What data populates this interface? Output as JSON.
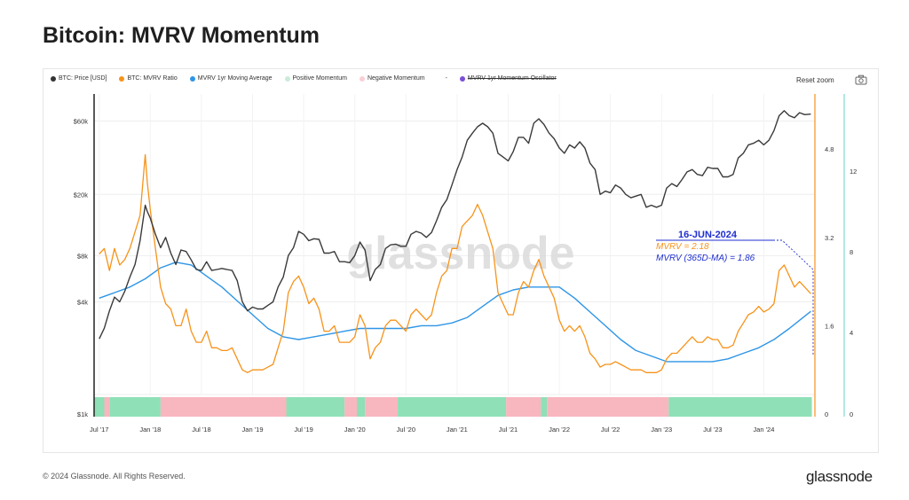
{
  "title": "Bitcoin: MVRV Momentum",
  "reset_zoom": "Reset zoom",
  "watermark": "glassnode",
  "footer": {
    "copyright": "© 2024 Glassnode. All Rights Reserved.",
    "logo": "glassnode"
  },
  "legend": [
    {
      "label": "BTC: Price [USD]",
      "color": "#333333"
    },
    {
      "label": "BTC: MVRV Ratio",
      "color": "#f7931a"
    },
    {
      "label": "MVRV 1yr Moving Average",
      "color": "#2e95e6"
    },
    {
      "label": "Positive Momentum",
      "color": "#c8ecd9"
    },
    {
      "label": "Negative Momentum",
      "color": "#f9cfd5"
    },
    {
      "label": "-",
      "color": "#ffffff"
    },
    {
      "label": "MVRV 1yr Momentum Oscillator",
      "color": "#7b4fd6",
      "struck": true
    }
  ],
  "annotation": {
    "date": "16-JUN-2024",
    "mvrv": "MVRV = 2.18",
    "ma": "MVRV (365D-MA) = 1.86"
  },
  "colors": {
    "price": "#3a3a3a",
    "mvrv": "#f7931a",
    "ma": "#2e95e6",
    "positive": "#8fe0b6",
    "negative": "#f8b6bf",
    "annotation": "#1f2fd0"
  },
  "chart_data": {
    "type": "line",
    "x_ticks": [
      "Jul '17",
      "Jan '18",
      "Jul '18",
      "Jan '19",
      "Jul '19",
      "Jan '20",
      "Jul '20",
      "Jan '21",
      "Jul '21",
      "Jan '22",
      "Jul '22",
      "Jan '23",
      "Jul '23",
      "Jan '24"
    ],
    "x_range": [
      2017.45,
      2024.5
    ],
    "price_axis": {
      "scale": "log",
      "ticks": [
        "$1k",
        "$4k",
        "$8k",
        "$20k",
        "$60k"
      ],
      "tick_values": [
        1000,
        4000,
        8000,
        20000,
        60000
      ]
    },
    "mvrv_axis": {
      "ticks": [
        "0",
        "1.6",
        "3.2",
        "4.8"
      ],
      "tick_values": [
        0,
        1.6,
        3.2,
        4.8
      ],
      "range": [
        0,
        5.8
      ]
    },
    "oscillator_axis": {
      "ticks": [
        "0",
        "4",
        "8",
        "12"
      ],
      "tick_values": [
        0,
        4,
        8,
        12
      ]
    },
    "series": [
      {
        "name": "BTC: Price [USD]",
        "x": [
          2017.5,
          2017.55,
          2017.6,
          2017.65,
          2017.7,
          2017.75,
          2017.8,
          2017.85,
          2017.9,
          2017.95,
          2017.97,
          2018.0,
          2018.05,
          2018.1,
          2018.15,
          2018.2,
          2018.25,
          2018.3,
          2018.35,
          2018.4,
          2018.45,
          2018.5,
          2018.55,
          2018.6,
          2018.65,
          2018.7,
          2018.75,
          2018.8,
          2018.85,
          2018.9,
          2018.95,
          2019.0,
          2019.05,
          2019.1,
          2019.15,
          2019.2,
          2019.25,
          2019.3,
          2019.35,
          2019.4,
          2019.45,
          2019.5,
          2019.55,
          2019.6,
          2019.65,
          2019.7,
          2019.75,
          2019.8,
          2019.85,
          2019.9,
          2019.95,
          2020.0,
          2020.05,
          2020.1,
          2020.15,
          2020.2,
          2020.25,
          2020.3,
          2020.35,
          2020.4,
          2020.45,
          2020.5,
          2020.55,
          2020.6,
          2020.65,
          2020.7,
          2020.75,
          2020.8,
          2020.85,
          2020.9,
          2020.95,
          2021.0,
          2021.05,
          2021.1,
          2021.15,
          2021.2,
          2021.25,
          2021.3,
          2021.35,
          2021.4,
          2021.45,
          2021.5,
          2021.55,
          2021.6,
          2021.65,
          2021.7,
          2021.75,
          2021.8,
          2021.85,
          2021.9,
          2021.95,
          2022.0,
          2022.05,
          2022.1,
          2022.15,
          2022.2,
          2022.25,
          2022.3,
          2022.35,
          2022.4,
          2022.45,
          2022.5,
          2022.55,
          2022.6,
          2022.65,
          2022.7,
          2022.75,
          2022.8,
          2022.85,
          2022.9,
          2022.95,
          2023.0,
          2023.05,
          2023.1,
          2023.15,
          2023.2,
          2023.25,
          2023.3,
          2023.35,
          2023.4,
          2023.45,
          2023.5,
          2023.55,
          2023.6,
          2023.65,
          2023.7,
          2023.75,
          2023.8,
          2023.85,
          2023.9,
          2023.95,
          2024.0,
          2024.05,
          2024.1,
          2024.15,
          2024.2,
          2024.25,
          2024.3,
          2024.35,
          2024.4,
          2024.46
        ],
        "values": [
          2300,
          2700,
          3500,
          4300,
          4000,
          4700,
          5800,
          7000,
          10000,
          17000,
          15500,
          14000,
          11000,
          9000,
          10500,
          8300,
          7000,
          8700,
          8500,
          7500,
          6500,
          6400,
          7300,
          6400,
          6500,
          6600,
          6500,
          6400,
          5500,
          4000,
          3500,
          3700,
          3600,
          3600,
          3800,
          4000,
          5000,
          5800,
          8000,
          9000,
          11500,
          11000,
          10000,
          10300,
          10200,
          8300,
          8300,
          8500,
          7300,
          7300,
          7200,
          8000,
          9800,
          8700,
          5500,
          6500,
          7000,
          8900,
          9400,
          9500,
          9200,
          9200,
          11000,
          11500,
          11200,
          10500,
          11300,
          13500,
          16500,
          18500,
          23000,
          29000,
          35000,
          45000,
          50000,
          55000,
          58000,
          55000,
          50000,
          37000,
          35000,
          33000,
          38000,
          47000,
          47000,
          43000,
          58000,
          62000,
          57000,
          50000,
          46000,
          40000,
          37000,
          42000,
          40000,
          44000,
          40000,
          32000,
          29000,
          20000,
          21000,
          20500,
          23000,
          22000,
          20000,
          19000,
          19500,
          20000,
          16500,
          17000,
          16500,
          17000,
          22000,
          23500,
          22500,
          25000,
          28000,
          29000,
          27000,
          26500,
          30000,
          29500,
          29500,
          26000,
          26000,
          27000,
          34500,
          37000,
          42000,
          43000,
          45000,
          42000,
          45000,
          52000,
          65000,
          70000,
          65000,
          63000,
          68000,
          66000,
          66500
        ]
      },
      {
        "name": "BTC: MVRV Ratio",
        "x": [
          2017.5,
          2017.55,
          2017.6,
          2017.65,
          2017.7,
          2017.75,
          2017.8,
          2017.85,
          2017.9,
          2017.95,
          2017.97,
          2018.0,
          2018.05,
          2018.1,
          2018.15,
          2018.2,
          2018.25,
          2018.3,
          2018.35,
          2018.4,
          2018.45,
          2018.5,
          2018.55,
          2018.6,
          2018.65,
          2018.7,
          2018.75,
          2018.8,
          2018.85,
          2018.9,
          2018.95,
          2019.0,
          2019.05,
          2019.1,
          2019.15,
          2019.2,
          2019.25,
          2019.3,
          2019.35,
          2019.4,
          2019.45,
          2019.5,
          2019.55,
          2019.6,
          2019.65,
          2019.7,
          2019.75,
          2019.8,
          2019.85,
          2019.9,
          2019.95,
          2020.0,
          2020.05,
          2020.1,
          2020.15,
          2020.2,
          2020.25,
          2020.3,
          2020.35,
          2020.4,
          2020.45,
          2020.5,
          2020.55,
          2020.6,
          2020.65,
          2020.7,
          2020.75,
          2020.8,
          2020.85,
          2020.9,
          2020.95,
          2021.0,
          2021.05,
          2021.1,
          2021.15,
          2021.2,
          2021.25,
          2021.3,
          2021.35,
          2021.4,
          2021.45,
          2021.5,
          2021.55,
          2021.6,
          2021.65,
          2021.7,
          2021.75,
          2021.8,
          2021.85,
          2021.9,
          2021.95,
          2022.0,
          2022.05,
          2022.1,
          2022.15,
          2022.2,
          2022.25,
          2022.3,
          2022.35,
          2022.4,
          2022.45,
          2022.5,
          2022.55,
          2022.6,
          2022.65,
          2022.7,
          2022.75,
          2022.8,
          2022.85,
          2022.9,
          2022.95,
          2023.0,
          2023.05,
          2023.1,
          2023.15,
          2023.2,
          2023.25,
          2023.3,
          2023.35,
          2023.4,
          2023.45,
          2023.5,
          2023.55,
          2023.6,
          2023.65,
          2023.7,
          2023.75,
          2023.8,
          2023.85,
          2023.9,
          2023.95,
          2024.0,
          2024.05,
          2024.1,
          2024.15,
          2024.2,
          2024.25,
          2024.3,
          2024.35,
          2024.4,
          2024.46
        ],
        "values": [
          2.9,
          3.0,
          2.6,
          3.0,
          2.7,
          2.8,
          3.0,
          3.3,
          3.6,
          4.7,
          4.2,
          3.7,
          3.0,
          2.3,
          2.0,
          1.9,
          1.6,
          1.6,
          1.9,
          1.5,
          1.3,
          1.3,
          1.5,
          1.2,
          1.2,
          1.15,
          1.15,
          1.2,
          1.0,
          0.8,
          0.75,
          0.8,
          0.8,
          0.8,
          0.85,
          0.9,
          1.2,
          1.5,
          2.2,
          2.4,
          2.5,
          2.3,
          2.0,
          2.1,
          1.9,
          1.5,
          1.5,
          1.6,
          1.3,
          1.3,
          1.3,
          1.4,
          1.8,
          1.6,
          1.0,
          1.2,
          1.3,
          1.6,
          1.7,
          1.7,
          1.6,
          1.5,
          1.8,
          1.9,
          1.8,
          1.7,
          1.8,
          2.2,
          2.5,
          2.6,
          3.0,
          3.0,
          3.4,
          3.5,
          3.6,
          3.8,
          3.6,
          3.3,
          3.0,
          2.2,
          2.0,
          1.8,
          1.8,
          2.2,
          2.4,
          2.3,
          2.6,
          2.8,
          2.5,
          2.3,
          2.1,
          1.7,
          1.5,
          1.6,
          1.5,
          1.6,
          1.4,
          1.1,
          1.0,
          0.85,
          0.9,
          0.9,
          0.95,
          0.9,
          0.85,
          0.8,
          0.8,
          0.8,
          0.75,
          0.75,
          0.75,
          0.8,
          1.0,
          1.1,
          1.1,
          1.2,
          1.3,
          1.4,
          1.3,
          1.3,
          1.4,
          1.35,
          1.35,
          1.2,
          1.2,
          1.25,
          1.5,
          1.65,
          1.8,
          1.85,
          1.95,
          1.85,
          1.9,
          2.0,
          2.6,
          2.7,
          2.5,
          2.3,
          2.4,
          2.3,
          2.18
        ]
      },
      {
        "name": "MVRV 1yr Moving Average",
        "x": [
          2017.5,
          2017.65,
          2017.8,
          2017.95,
          2018.1,
          2018.25,
          2018.4,
          2018.55,
          2018.7,
          2018.85,
          2019.0,
          2019.15,
          2019.3,
          2019.45,
          2019.6,
          2019.75,
          2019.9,
          2020.05,
          2020.2,
          2020.35,
          2020.5,
          2020.65,
          2020.8,
          2020.95,
          2021.1,
          2021.25,
          2021.4,
          2021.55,
          2021.7,
          2021.85,
          2022.0,
          2022.15,
          2022.3,
          2022.45,
          2022.6,
          2022.75,
          2022.9,
          2023.05,
          2023.2,
          2023.35,
          2023.5,
          2023.65,
          2023.8,
          2023.95,
          2024.1,
          2024.25,
          2024.46
        ],
        "values": [
          2.1,
          2.2,
          2.3,
          2.45,
          2.65,
          2.75,
          2.7,
          2.5,
          2.3,
          2.05,
          1.8,
          1.55,
          1.4,
          1.35,
          1.4,
          1.45,
          1.5,
          1.55,
          1.55,
          1.55,
          1.55,
          1.6,
          1.6,
          1.65,
          1.75,
          1.95,
          2.15,
          2.25,
          2.3,
          2.3,
          2.3,
          2.1,
          1.85,
          1.6,
          1.35,
          1.15,
          1.05,
          0.95,
          0.95,
          0.95,
          0.95,
          1.0,
          1.1,
          1.2,
          1.35,
          1.55,
          1.86
        ]
      }
    ],
    "momentum_bands": [
      {
        "from": 2017.45,
        "to": 2017.55,
        "state": "positive"
      },
      {
        "from": 2017.55,
        "to": 2017.6,
        "state": "negative"
      },
      {
        "from": 2017.6,
        "to": 2018.1,
        "state": "positive"
      },
      {
        "from": 2018.1,
        "to": 2019.33,
        "state": "negative"
      },
      {
        "from": 2019.33,
        "to": 2019.9,
        "state": "positive"
      },
      {
        "from": 2019.9,
        "to": 2020.02,
        "state": "negative"
      },
      {
        "from": 2020.02,
        "to": 2020.1,
        "state": "positive"
      },
      {
        "from": 2020.1,
        "to": 2020.42,
        "state": "negative"
      },
      {
        "from": 2020.42,
        "to": 2021.48,
        "state": "positive"
      },
      {
        "from": 2021.48,
        "to": 2021.82,
        "state": "negative"
      },
      {
        "from": 2021.82,
        "to": 2021.88,
        "state": "positive"
      },
      {
        "from": 2021.88,
        "to": 2023.07,
        "state": "negative"
      },
      {
        "from": 2023.07,
        "to": 2024.47,
        "state": "positive"
      }
    ]
  }
}
